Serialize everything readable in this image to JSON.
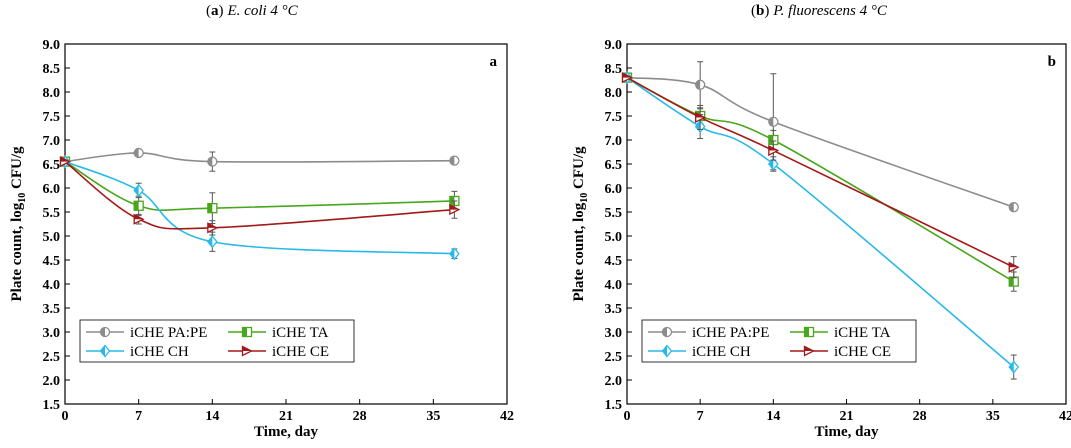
{
  "chart_data": [
    {
      "type": "line",
      "panel_letter": "a",
      "title_letter": "a",
      "title_name": "E. coli 4 °C",
      "xlabel": "Time, day",
      "ylabel_prefix": "Plate count, log",
      "ylabel_sub": "10",
      "ylabel_suffix": " CFU/g",
      "xlim": [
        0,
        42
      ],
      "ylim": [
        1.5,
        9.0
      ],
      "xticks": [
        0,
        7,
        14,
        21,
        28,
        35,
        42
      ],
      "yticks": [
        1.5,
        2.0,
        2.5,
        3.0,
        3.5,
        4.0,
        4.5,
        5.0,
        5.5,
        6.0,
        6.5,
        7.0,
        7.5,
        8.0,
        8.5,
        9.0
      ],
      "x": [
        0,
        7,
        14,
        37
      ],
      "legend": "bottom-left",
      "series": [
        {
          "name": "iCHE PA:PE",
          "color": "#8c8c8c",
          "marker": "circle",
          "values": [
            6.55,
            6.73,
            6.55,
            6.57
          ],
          "errors": [
            0,
            0.07,
            0.2,
            0.06
          ]
        },
        {
          "name": "iCHE TA",
          "color": "#4aa61c",
          "marker": "square",
          "values": [
            6.55,
            5.63,
            5.58,
            5.73
          ],
          "errors": [
            0,
            0.2,
            0.32,
            0.2
          ]
        },
        {
          "name": "iCHE CH",
          "color": "#29b9e9",
          "marker": "diamond",
          "values": [
            6.55,
            5.95,
            4.88,
            4.63
          ],
          "errors": [
            0,
            0.15,
            0.2,
            0.1
          ]
        },
        {
          "name": "iCHE CE",
          "color": "#a31818",
          "marker": "triangle",
          "values": [
            6.55,
            5.35,
            5.17,
            5.55
          ],
          "errors": [
            0,
            0.1,
            0.15,
            0.18
          ]
        }
      ]
    },
    {
      "type": "line",
      "panel_letter": "b",
      "title_letter": "b",
      "title_name": "P. fluorescens 4 °C",
      "xlabel": "Time, day",
      "ylabel_prefix": "Plate count, log",
      "ylabel_sub": "10",
      "ylabel_suffix": " CFU/g",
      "xlim": [
        0,
        42
      ],
      "ylim": [
        1.5,
        9.0
      ],
      "xticks": [
        0,
        7,
        14,
        21,
        28,
        35,
        42
      ],
      "yticks": [
        1.5,
        2.0,
        2.5,
        3.0,
        3.5,
        4.0,
        4.5,
        5.0,
        5.5,
        6.0,
        6.5,
        7.0,
        7.5,
        8.0,
        8.5,
        9.0
      ],
      "x": [
        0,
        7,
        14,
        37
      ],
      "legend": "bottom-left",
      "series": [
        {
          "name": "iCHE PA:PE",
          "color": "#8c8c8c",
          "marker": "circle",
          "values": [
            8.3,
            8.15,
            7.38,
            5.6
          ],
          "errors": [
            0,
            0.48,
            1.0,
            0.06
          ]
        },
        {
          "name": "iCHE TA",
          "color": "#4aa61c",
          "marker": "square",
          "values": [
            8.3,
            7.5,
            7.0,
            4.05
          ],
          "errors": [
            0,
            0.15,
            0.2,
            0.2
          ]
        },
        {
          "name": "iCHE CH",
          "color": "#29b9e9",
          "marker": "diamond",
          "values": [
            8.3,
            7.28,
            6.5,
            2.27
          ],
          "errors": [
            0,
            0.25,
            0.15,
            0.25
          ]
        },
        {
          "name": "iCHE CE",
          "color": "#a31818",
          "marker": "triangle",
          "values": [
            8.3,
            7.47,
            6.78,
            4.35
          ],
          "errors": [
            0,
            0.25,
            0.2,
            0.22
          ]
        }
      ]
    }
  ]
}
